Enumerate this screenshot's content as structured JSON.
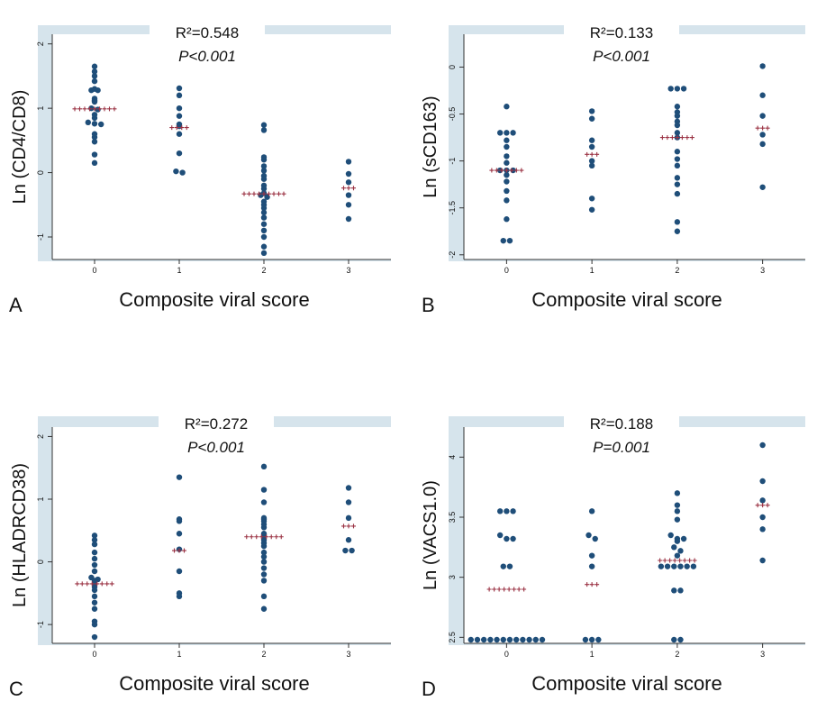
{
  "chart_data": [
    {
      "type": "scatter",
      "panel_letter": "A",
      "annotation_r2": "R²=0.548",
      "annotation_p": "P<0.001",
      "xlabel": "Composite viral score",
      "ylabel": "Ln (CD4/CD8)",
      "xlim": [
        -0.5,
        3.5
      ],
      "ylim": [
        -1.35,
        2.15
      ],
      "x_ticks": [
        0,
        1,
        2,
        3
      ],
      "y_ticks": [
        -1,
        0,
        1,
        2
      ],
      "points": {
        "0": [
          1.65,
          1.57,
          1.5,
          1.42,
          1.3,
          1.28,
          1.28,
          1.15,
          1.12,
          1.1,
          1.0,
          0.98,
          0.9,
          0.85,
          0.78,
          0.76,
          0.75,
          0.6,
          0.55,
          0.48,
          0.28,
          0.15
        ],
        "1": [
          1.31,
          1.2,
          1.0,
          0.88,
          0.75,
          0.72,
          0.6,
          0.3,
          0.02,
          0.0
        ],
        "2": [
          0.74,
          0.66,
          0.24,
          0.2,
          0.1,
          0.03,
          -0.05,
          -0.1,
          -0.2,
          -0.25,
          -0.32,
          -0.35,
          -0.38,
          -0.45,
          -0.5,
          -0.55,
          -0.62,
          -0.7,
          -0.8,
          -0.9,
          -1.0,
          -1.15,
          -1.25
        ],
        "3": [
          0.17,
          -0.02,
          -0.15,
          -0.35,
          -0.5,
          -0.72
        ]
      },
      "means": {
        "0": 0.99,
        "1": 0.7,
        "2": -0.33,
        "3": -0.24
      }
    },
    {
      "type": "scatter",
      "panel_letter": "B",
      "annotation_r2": "R²=0.133",
      "annotation_p": "P<0.001",
      "xlabel": "Composite viral score",
      "ylabel": "Ln (sCD163)",
      "xlim": [
        -0.5,
        3.5
      ],
      "ylim": [
        -2.05,
        0.35
      ],
      "x_ticks": [
        0,
        1,
        2,
        3
      ],
      "y_ticks": [
        -2,
        -1.5,
        -1,
        -0.5,
        0
      ],
      "points": {
        "0": [
          -0.42,
          -0.7,
          -0.7,
          -0.7,
          -0.78,
          -0.85,
          -0.95,
          -1.02,
          -1.1,
          -1.1,
          -1.1,
          -1.15,
          -1.22,
          -1.32,
          -1.42,
          -1.62,
          -1.85,
          -1.85
        ],
        "1": [
          -0.47,
          -0.55,
          -0.78,
          -0.85,
          -1.0,
          -1.05,
          -1.4,
          -1.52
        ],
        "2": [
          -0.23,
          -0.23,
          -0.23,
          -0.42,
          -0.48,
          -0.52,
          -0.58,
          -0.62,
          -0.7,
          -0.75,
          -0.9,
          -0.98,
          -1.05,
          -1.18,
          -1.25,
          -1.35,
          -1.65,
          -1.75
        ],
        "3": [
          0.01,
          -0.3,
          -0.52,
          -0.72,
          -0.82,
          -1.28
        ]
      },
      "means": {
        "0": -1.1,
        "1": -0.93,
        "2": -0.75,
        "3": -0.65
      }
    },
    {
      "type": "scatter",
      "panel_letter": "C",
      "annotation_r2": "R²=0.272",
      "annotation_p": "P<0.001",
      "xlabel": "Composite viral score",
      "ylabel": "Ln (HLADRCD38)",
      "xlim": [
        -0.5,
        3.5
      ],
      "ylim": [
        -1.3,
        2.15
      ],
      "x_ticks": [
        0,
        1,
        2,
        3
      ],
      "y_ticks": [
        -1,
        0,
        1,
        2
      ],
      "points": {
        "0": [
          0.42,
          0.35,
          0.28,
          0.15,
          0.05,
          -0.05,
          -0.15,
          -0.25,
          -0.28,
          -0.3,
          -0.35,
          -0.4,
          -0.45,
          -0.55,
          -0.65,
          -0.75,
          -0.95,
          -1.0,
          -1.2
        ],
        "1": [
          1.35,
          0.68,
          0.65,
          0.45,
          0.2,
          -0.15,
          -0.5,
          -0.55
        ],
        "2": [
          1.52,
          1.15,
          0.95,
          0.7,
          0.68,
          0.65,
          0.6,
          0.55,
          0.45,
          0.42,
          0.35,
          0.3,
          0.25,
          0.15,
          0.08,
          0.0,
          -0.1,
          -0.2,
          -0.3,
          -0.55,
          -0.75
        ],
        "3": [
          1.18,
          0.95,
          0.7,
          0.35,
          0.18,
          0.18
        ]
      },
      "means": {
        "0": -0.35,
        "1": 0.18,
        "2": 0.4,
        "3": 0.57
      }
    },
    {
      "type": "scatter",
      "panel_letter": "D",
      "annotation_r2": "R²=0.188",
      "annotation_p": "P=0.001",
      "xlabel": "Composite viral score",
      "ylabel": "Ln (VACS1.0)",
      "xlim": [
        -0.5,
        3.5
      ],
      "ylim": [
        2.45,
        4.25
      ],
      "x_ticks": [
        0,
        1,
        2,
        3
      ],
      "y_ticks": [
        2.5,
        3,
        3.5,
        4
      ],
      "points": {
        "0": [
          3.55,
          3.55,
          3.55,
          3.35,
          3.32,
          3.32,
          3.09,
          3.09,
          2.48,
          2.48,
          2.48,
          2.48,
          2.48,
          2.48,
          2.48,
          2.48,
          2.48,
          2.48,
          2.48,
          2.48
        ],
        "1": [
          3.55,
          3.35,
          3.32,
          3.18,
          3.09,
          2.48,
          2.48,
          2.48
        ],
        "2": [
          3.7,
          3.6,
          3.55,
          3.48,
          3.35,
          3.32,
          3.32,
          3.3,
          3.25,
          3.22,
          3.18,
          3.09,
          3.09,
          3.09,
          3.09,
          3.09,
          3.09,
          2.89,
          2.89,
          2.48,
          2.48
        ],
        "3": [
          4.1,
          3.8,
          3.64,
          3.5,
          3.4,
          3.14
        ]
      },
      "means": {
        "0": 2.9,
        "1": 2.94,
        "2": 3.14,
        "3": 3.6
      }
    }
  ],
  "colors": {
    "point": "#1f4e79",
    "mean_marker": "#9b3344",
    "frame": "#d6e4ec",
    "axis": "#333333",
    "text": "#111111"
  }
}
